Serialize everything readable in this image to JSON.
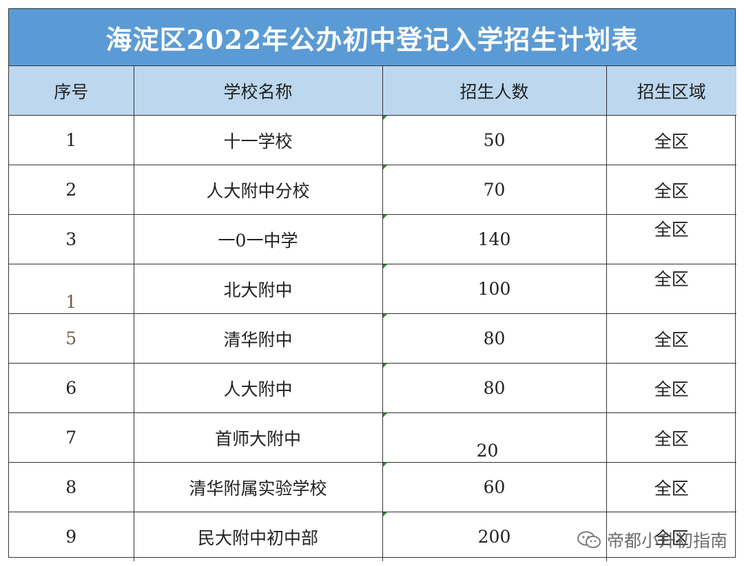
{
  "title": "海淀区2022年公办初中登记入学招生计划表",
  "headers": [
    "序号",
    "学校名称",
    "招生人数",
    "招生区域"
  ],
  "rows": [
    {
      "no": "1",
      "school": "十一学校",
      "count": "50",
      "area": "全区"
    },
    {
      "no": "2",
      "school": "人大附中分校",
      "count": "70",
      "area": "全区"
    },
    {
      "no": "3",
      "school": "一0一中学",
      "count": "140",
      "area": "全区"
    },
    {
      "no": "1",
      "school": "北大附中",
      "count": "100",
      "area": "全区"
    },
    {
      "no": "5",
      "school": "清华附中",
      "count": "80",
      "area": "全区"
    },
    {
      "no": "6",
      "school": "人大附中",
      "count": "80",
      "area": "全区"
    },
    {
      "no": "7",
      "school": "首师大附中",
      "count": "20",
      "area": "全区"
    },
    {
      "no": "8",
      "school": "清华附属实验学校",
      "count": "60",
      "area": "全区"
    },
    {
      "no": "9",
      "school": "民大附中初中部",
      "count": "200",
      "area": "全区"
    }
  ],
  "watermark": {
    "text": "帝都小升初指南",
    "icon": "wechat-icon"
  },
  "colors": {
    "title_bg": "#5b9bd5",
    "header_bg": "#bdd7ee",
    "cell_marker": "#2e8b2e"
  }
}
